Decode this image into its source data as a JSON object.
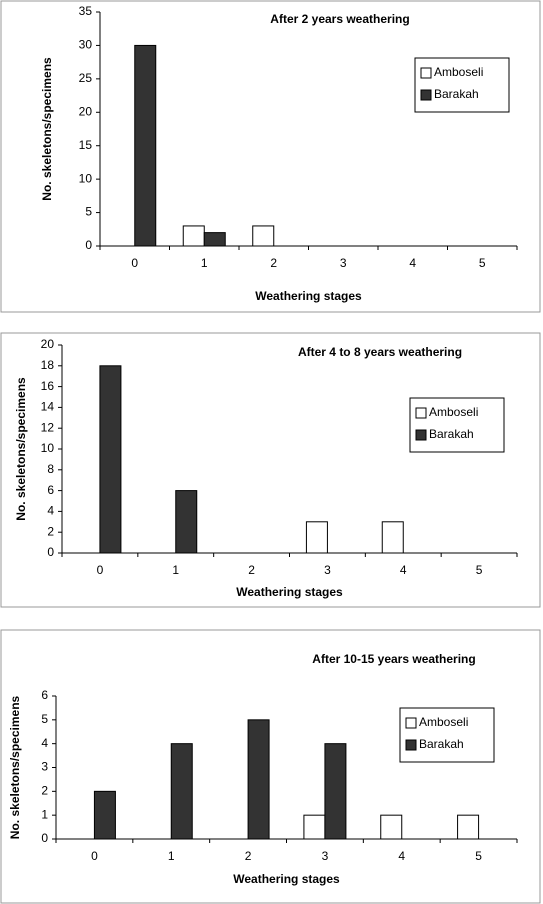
{
  "chart_data": [
    {
      "type": "bar",
      "title": "After 2 years weathering",
      "x_label": "Weathering stages",
      "y_label": "No. skeletons/specimens",
      "categories": [
        "0",
        "1",
        "2",
        "3",
        "4",
        "5"
      ],
      "series": [
        {
          "name": "Amboseli",
          "color": "#ffffff",
          "values": [
            0,
            3,
            3,
            0,
            0,
            0
          ]
        },
        {
          "name": "Barakah",
          "color": "#333333",
          "values": [
            30,
            2,
            0,
            0,
            0,
            0
          ]
        }
      ],
      "ylim": [
        0,
        35
      ],
      "yticks": [
        0,
        5,
        10,
        15,
        20,
        25,
        30,
        35
      ],
      "legend": "upper right"
    },
    {
      "type": "bar",
      "title": "After 4 to 8 years weathering",
      "x_label": "Weathering stages",
      "y_label": "No. skeletons/specimens",
      "categories": [
        "0",
        "1",
        "2",
        "3",
        "4",
        "5"
      ],
      "series": [
        {
          "name": "Amboseli",
          "color": "#ffffff",
          "values": [
            0,
            0,
            0,
            3,
            3,
            0
          ]
        },
        {
          "name": "Barakah",
          "color": "#333333",
          "values": [
            18,
            6,
            0,
            0,
            0,
            0
          ]
        }
      ],
      "ylim": [
        0,
        20
      ],
      "yticks": [
        0,
        2,
        4,
        6,
        8,
        10,
        12,
        14,
        16,
        18,
        20
      ],
      "legend": "upper right"
    },
    {
      "type": "bar",
      "title": "After 10-15 years weathering",
      "x_label": "Weathering stages",
      "y_label": "No. skeletons/specimens",
      "categories": [
        "0",
        "1",
        "2",
        "3",
        "4",
        "5"
      ],
      "series": [
        {
          "name": "Amboseli",
          "color": "#ffffff",
          "values": [
            0,
            0,
            0,
            1,
            1,
            1
          ]
        },
        {
          "name": "Barakah",
          "color": "#333333",
          "values": [
            2,
            4,
            5,
            4,
            0,
            0
          ]
        }
      ],
      "ylim": [
        0,
        6
      ],
      "yticks": [
        0,
        1,
        2,
        3,
        4,
        5,
        6
      ],
      "legend": "upper right"
    }
  ]
}
